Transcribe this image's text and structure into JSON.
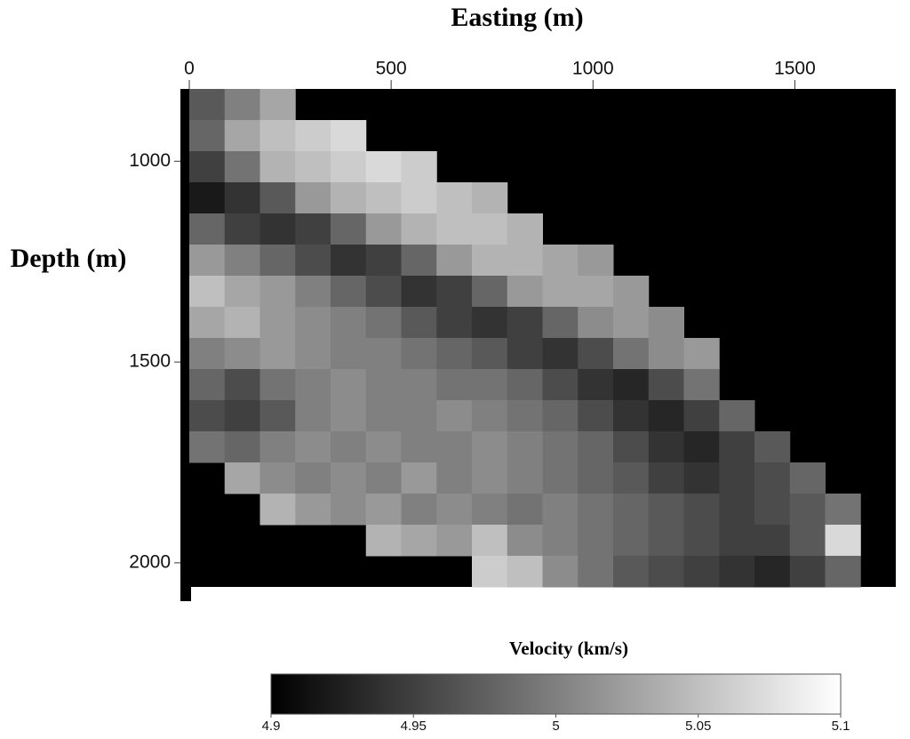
{
  "chart_data": {
    "type": "heatmap",
    "x_label": "Easting (m)",
    "y_label": "Depth (m)",
    "colorbar_label": "Velocity (km/s)",
    "x": [
      43.75,
      131.25,
      218.75,
      306.25,
      393.75,
      481.25,
      568.75,
      656.25,
      743.75,
      831.25,
      918.75,
      1006.25,
      1093.75,
      1181.25,
      1268.75,
      1356.25,
      1443.75,
      1531.25,
      1618.75,
      1706.25
    ],
    "y": [
      858.75,
      936.25,
      1013.75,
      1091.25,
      1168.75,
      1246.25,
      1323.75,
      1401.25,
      1478.75,
      1556.25,
      1633.75,
      1711.25,
      1788.75,
      1866.25,
      1943.75,
      2021.25
    ],
    "values": [
      [
        4.97,
        5.0,
        5.03,
        null,
        null,
        null,
        null,
        null,
        null,
        null,
        null,
        null,
        null,
        null,
        null,
        null,
        null,
        null,
        null,
        null
      ],
      [
        4.98,
        5.03,
        5.05,
        5.06,
        5.07,
        null,
        null,
        null,
        null,
        null,
        null,
        null,
        null,
        null,
        null,
        null,
        null,
        null,
        null,
        null
      ],
      [
        4.95,
        4.99,
        5.04,
        5.05,
        5.06,
        5.07,
        5.06,
        null,
        null,
        null,
        null,
        null,
        null,
        null,
        null,
        null,
        null,
        null,
        null,
        null
      ],
      [
        4.92,
        4.94,
        4.97,
        5.02,
        5.04,
        5.05,
        5.06,
        5.05,
        5.04,
        null,
        null,
        null,
        null,
        null,
        null,
        null,
        null,
        null,
        null,
        null
      ],
      [
        4.98,
        4.95,
        4.94,
        4.95,
        4.98,
        5.02,
        5.04,
        5.05,
        5.05,
        5.04,
        null,
        null,
        null,
        null,
        null,
        null,
        null,
        null,
        null,
        null
      ],
      [
        5.02,
        5.0,
        4.98,
        4.96,
        4.94,
        4.95,
        4.98,
        5.02,
        5.04,
        5.04,
        5.03,
        5.02,
        null,
        null,
        null,
        null,
        null,
        null,
        null,
        null
      ],
      [
        5.05,
        5.03,
        5.02,
        5.0,
        4.98,
        4.96,
        4.94,
        4.95,
        4.98,
        5.02,
        5.03,
        5.03,
        5.02,
        null,
        null,
        null,
        null,
        null,
        null,
        null
      ],
      [
        5.03,
        5.04,
        5.02,
        5.01,
        5.0,
        4.99,
        4.97,
        4.95,
        4.94,
        4.95,
        4.98,
        5.01,
        5.02,
        5.01,
        null,
        null,
        null,
        null,
        null,
        null
      ],
      [
        5.0,
        5.01,
        5.02,
        5.01,
        5.0,
        5.0,
        4.99,
        4.98,
        4.97,
        4.95,
        4.94,
        4.96,
        4.99,
        5.01,
        5.02,
        null,
        null,
        null,
        null,
        null
      ],
      [
        4.98,
        4.96,
        4.99,
        5.0,
        5.01,
        5.0,
        5.0,
        4.99,
        4.99,
        4.98,
        4.96,
        4.94,
        4.93,
        4.96,
        4.99,
        null,
        null,
        null,
        null,
        null
      ],
      [
        4.96,
        4.95,
        4.97,
        5.0,
        5.01,
        5.0,
        5.0,
        5.01,
        5.0,
        4.99,
        4.98,
        4.96,
        4.94,
        4.93,
        4.95,
        4.98,
        null,
        null,
        null,
        null
      ],
      [
        4.99,
        4.98,
        5.0,
        5.01,
        5.0,
        5.01,
        5.0,
        5.0,
        5.01,
        5.0,
        4.99,
        4.98,
        4.96,
        4.94,
        4.93,
        4.95,
        4.97,
        null,
        null,
        null
      ],
      [
        null,
        5.03,
        5.01,
        5.0,
        5.01,
        5.0,
        5.02,
        5.0,
        5.01,
        5.0,
        4.99,
        4.98,
        4.97,
        4.95,
        4.94,
        4.95,
        4.96,
        4.98,
        null,
        null
      ],
      [
        null,
        null,
        5.04,
        5.02,
        5.01,
        5.02,
        5.0,
        5.01,
        5.0,
        4.99,
        5.0,
        4.99,
        4.98,
        4.97,
        4.96,
        4.95,
        4.96,
        4.97,
        4.99,
        null
      ],
      [
        null,
        null,
        null,
        null,
        null,
        5.04,
        5.03,
        5.02,
        5.05,
        5.01,
        5.0,
        4.99,
        4.98,
        4.97,
        4.96,
        4.95,
        4.95,
        4.97,
        5.07,
        null
      ],
      [
        null,
        null,
        null,
        null,
        null,
        null,
        null,
        null,
        5.06,
        5.05,
        5.01,
        4.99,
        4.97,
        4.96,
        4.95,
        4.94,
        4.93,
        4.95,
        4.98,
        null
      ]
    ],
    "xlim": [
      0,
      1750
    ],
    "xticks": [
      0,
      500,
      1000,
      1500
    ],
    "ylim": [
      820,
      2060
    ],
    "yticks": [
      1000,
      1500,
      2000
    ],
    "y_inverted": true,
    "clim": [
      4.9,
      5.1
    ],
    "cticks": [
      4.9,
      4.95,
      5,
      5.05,
      5.1
    ],
    "colors": [
      "#000000",
      "#ffffff"
    ],
    "background": "#000000"
  }
}
